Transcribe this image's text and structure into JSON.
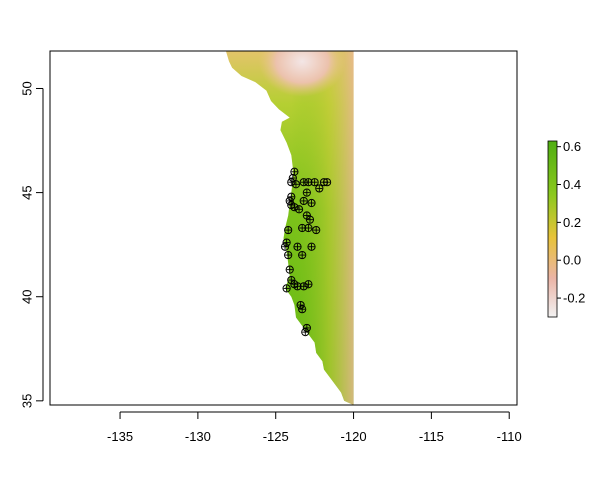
{
  "chart_data": {
    "type": "raster-map",
    "title": "",
    "xlabel": "",
    "ylabel": "",
    "xlim": [
      -139.5,
      -109.5
    ],
    "ylim": [
      34.8,
      51.8
    ],
    "x_ticks": [
      -135,
      -130,
      -125,
      -120,
      -115,
      -110
    ],
    "x_tick_labels": [
      "-135",
      "-130",
      "-125",
      "-120",
      "-115",
      "-110"
    ],
    "y_ticks": [
      35,
      40,
      45,
      50
    ],
    "y_tick_labels": [
      "35",
      "40",
      "45",
      "50"
    ],
    "raster_east_edge": -120,
    "legend": {
      "placement": "right",
      "range": [
        -0.3,
        0.63
      ],
      "ticks": [
        -0.2,
        0.0,
        0.2,
        0.4,
        0.6
      ],
      "tick_labels": [
        "-0.2",
        "0.0",
        "0.2",
        "0.4",
        "0.6"
      ],
      "colors": [
        "#f2f2f2",
        "#ebb4a6",
        "#e8c33a",
        "#8ac81e",
        "#4fae12"
      ]
    },
    "points": [
      {
        "lon": -123.8,
        "lat": 46.0
      },
      {
        "lon": -123.9,
        "lat": 45.7
      },
      {
        "lon": -124.0,
        "lat": 45.5
      },
      {
        "lon": -123.7,
        "lat": 45.4
      },
      {
        "lon": -123.2,
        "lat": 45.5
      },
      {
        "lon": -122.9,
        "lat": 45.5
      },
      {
        "lon": -122.5,
        "lat": 45.5
      },
      {
        "lon": -121.9,
        "lat": 45.5
      },
      {
        "lon": -122.2,
        "lat": 45.2
      },
      {
        "lon": -123.0,
        "lat": 45.0
      },
      {
        "lon": -124.0,
        "lat": 44.8
      },
      {
        "lon": -124.1,
        "lat": 44.6
      },
      {
        "lon": -124.0,
        "lat": 44.4
      },
      {
        "lon": -123.8,
        "lat": 44.3
      },
      {
        "lon": -123.5,
        "lat": 44.2
      },
      {
        "lon": -123.2,
        "lat": 44.6
      },
      {
        "lon": -122.7,
        "lat": 44.5
      },
      {
        "lon": -123.0,
        "lat": 43.9
      },
      {
        "lon": -122.8,
        "lat": 43.7
      },
      {
        "lon": -123.3,
        "lat": 43.3
      },
      {
        "lon": -122.9,
        "lat": 43.3
      },
      {
        "lon": -122.4,
        "lat": 43.2
      },
      {
        "lon": -124.2,
        "lat": 43.2
      },
      {
        "lon": -124.3,
        "lat": 42.6
      },
      {
        "lon": -124.4,
        "lat": 42.4
      },
      {
        "lon": -123.6,
        "lat": 42.4
      },
      {
        "lon": -124.2,
        "lat": 42.0
      },
      {
        "lon": -123.3,
        "lat": 42.0
      },
      {
        "lon": -122.7,
        "lat": 42.4
      },
      {
        "lon": -124.1,
        "lat": 41.3
      },
      {
        "lon": -124.0,
        "lat": 40.8
      },
      {
        "lon": -123.8,
        "lat": 40.6
      },
      {
        "lon": -124.3,
        "lat": 40.4
      },
      {
        "lon": -123.6,
        "lat": 40.5
      },
      {
        "lon": -123.2,
        "lat": 40.5
      },
      {
        "lon": -122.9,
        "lat": 40.6
      },
      {
        "lon": -123.4,
        "lat": 39.6
      },
      {
        "lon": -123.3,
        "lat": 39.4
      },
      {
        "lon": -123.0,
        "lat": 38.5
      },
      {
        "lon": -123.1,
        "lat": 38.3
      },
      {
        "lon": -121.7,
        "lat": 45.5
      }
    ]
  }
}
